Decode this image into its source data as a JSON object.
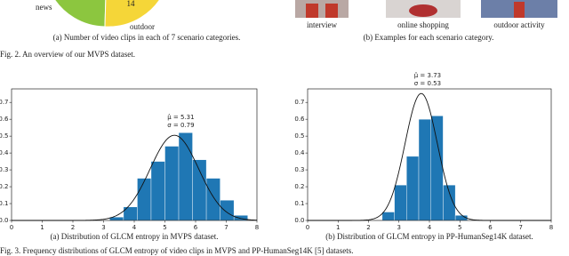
{
  "fig2": {
    "pie_labels": [
      "news",
      "14",
      "outdoor"
    ],
    "caption_a": "(a) Number of video clips in each of 7 scenario categories.",
    "example_labels": [
      "interview",
      "online shopping",
      "outdoor activity"
    ],
    "caption_b": "(b) Examples for each scenario category.",
    "caption": "Fig. 2.  An overview of our MVPS dataset."
  },
  "chart_data": [
    {
      "type": "histogram",
      "caption": "(a) Distribution of GLCM entropy in MVPS dataset.",
      "bins": [
        3.2,
        3.65,
        4.1,
        4.55,
        5.0,
        5.45,
        5.9,
        6.35,
        6.8,
        7.25,
        7.7
      ],
      "values": [
        0.02,
        0.08,
        0.25,
        0.35,
        0.44,
        0.52,
        0.36,
        0.25,
        0.12,
        0.03
      ],
      "color": "#1f77b4",
      "fit": {
        "mu": 5.31,
        "sigma": 0.79,
        "mu_label": "μ̂ = 5.31",
        "sigma_label": "σ = 0.79"
      },
      "xlim": [
        0,
        8
      ],
      "xticks": [
        0,
        1,
        2,
        3,
        4,
        5,
        6,
        7,
        8
      ],
      "ylim": [
        0,
        0.78
      ],
      "yticks": [
        {
          "value": 0,
          "label": "0.0"
        },
        0.1,
        0.2,
        0.3,
        0.4,
        0.5,
        0.6,
        0.7
      ]
    },
    {
      "type": "histogram",
      "caption": "(b) Distribution of GLCM entropy in PP-HumanSeg14K dataset.",
      "bins": [
        2.45,
        2.85,
        3.25,
        3.65,
        4.05,
        4.45,
        4.85,
        5.25
      ],
      "values": [
        0.05,
        0.21,
        0.38,
        0.6,
        0.62,
        0.21,
        0.03
      ],
      "color": "#1f77b4",
      "fit": {
        "mu": 3.73,
        "sigma": 0.53,
        "mu_label": "μ̂ = 3.73",
        "sigma_label": "σ = 0.53"
      },
      "xlim": [
        0,
        8
      ],
      "xticks": [
        0,
        1,
        2,
        3,
        4,
        5,
        6,
        7,
        8
      ],
      "ylim": [
        0,
        0.78
      ],
      "yticks": [
        {
          "value": 0,
          "label": "0.0"
        },
        0.1,
        0.2,
        0.3,
        0.4,
        0.5,
        0.6,
        0.7
      ]
    }
  ],
  "fig3_caption": "Fig. 3.  Frequency distributions of GLCM entropy of video clips in MVPS and PP-HumanSeg14K [5] datasets."
}
